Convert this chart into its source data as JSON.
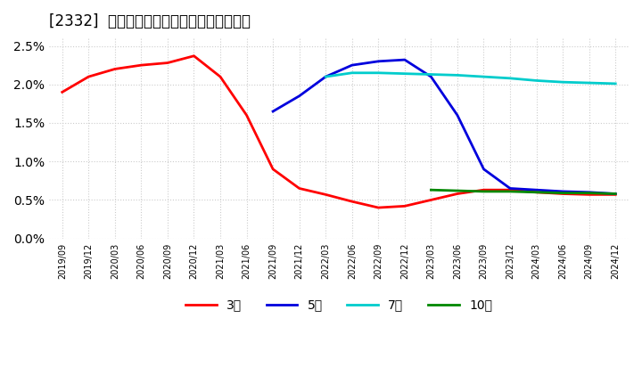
{
  "title": "[2332]  経常利益マージンの標準偏差の推移",
  "background_color": "#ffffff",
  "plot_bg_color": "#ffffff",
  "grid_color": "#cccccc",
  "ylim": [
    0.0,
    0.026
  ],
  "yticks": [
    0.0,
    0.005,
    0.01,
    0.015,
    0.02,
    0.025
  ],
  "ytick_labels": [
    "0.0%",
    "0.5%",
    "1.0%",
    "1.5%",
    "2.0%",
    "2.5%"
  ],
  "series": {
    "3year": {
      "color": "#ff0000",
      "label": "3年",
      "x": [
        "2019/09",
        "2019/12",
        "2020/03",
        "2020/06",
        "2020/09",
        "2020/12",
        "2021/03",
        "2021/06",
        "2021/09",
        "2021/12",
        "2022/03",
        "2022/06",
        "2022/09",
        "2022/12",
        "2023/03",
        "2023/06",
        "2023/09",
        "2023/12",
        "2024/03",
        "2024/06",
        "2024/09",
        "2024/12"
      ],
      "y": [
        0.019,
        0.021,
        0.022,
        0.0225,
        0.0228,
        0.0237,
        0.021,
        0.016,
        0.009,
        0.0065,
        0.0057,
        0.0048,
        0.004,
        0.0042,
        0.005,
        0.0058,
        0.0063,
        0.0063,
        0.006,
        0.0058,
        0.0057,
        0.0057
      ]
    },
    "5year": {
      "color": "#0000dd",
      "label": "5年",
      "x": [
        "2021/09",
        "2021/12",
        "2022/03",
        "2022/06",
        "2022/09",
        "2022/12",
        "2023/03",
        "2023/06",
        "2023/09",
        "2023/12",
        "2024/03",
        "2024/06",
        "2024/09",
        "2024/12"
      ],
      "y": [
        0.0165,
        0.0185,
        0.021,
        0.0225,
        0.023,
        0.0232,
        0.021,
        0.016,
        0.009,
        0.0065,
        0.0063,
        0.0061,
        0.006,
        0.0058
      ]
    },
    "7year": {
      "color": "#00cccc",
      "label": "7年",
      "x": [
        "2022/03",
        "2022/06",
        "2022/09",
        "2022/12",
        "2023/03",
        "2023/06",
        "2023/09",
        "2023/12",
        "2024/03",
        "2024/06",
        "2024/09",
        "2024/12"
      ],
      "y": [
        0.021,
        0.0215,
        0.0215,
        0.0214,
        0.0213,
        0.0212,
        0.021,
        0.0208,
        0.0205,
        0.0203,
        0.0202,
        0.0201
      ]
    },
    "10year": {
      "color": "#008800",
      "label": "10年",
      "x": [
        "2023/03",
        "2023/06",
        "2023/09",
        "2023/12",
        "2024/03",
        "2024/06",
        "2024/09",
        "2024/12"
      ],
      "y": [
        0.0063,
        0.0062,
        0.0061,
        0.0061,
        0.006,
        0.0059,
        0.0059,
        0.0058
      ]
    }
  },
  "xtick_labels": [
    "2019/09",
    "2019/12",
    "2020/03",
    "2020/06",
    "2020/09",
    "2020/12",
    "2021/03",
    "2021/06",
    "2021/09",
    "2021/12",
    "2022/03",
    "2022/06",
    "2022/09",
    "2022/12",
    "2023/03",
    "2023/06",
    "2023/09",
    "2023/12",
    "2024/03",
    "2024/06",
    "2024/09",
    "2024/12"
  ],
  "legend_entries": [
    "3年",
    "5年",
    "7年",
    "10年"
  ],
  "legend_colors": [
    "#ff0000",
    "#0000dd",
    "#00cccc",
    "#008800"
  ]
}
